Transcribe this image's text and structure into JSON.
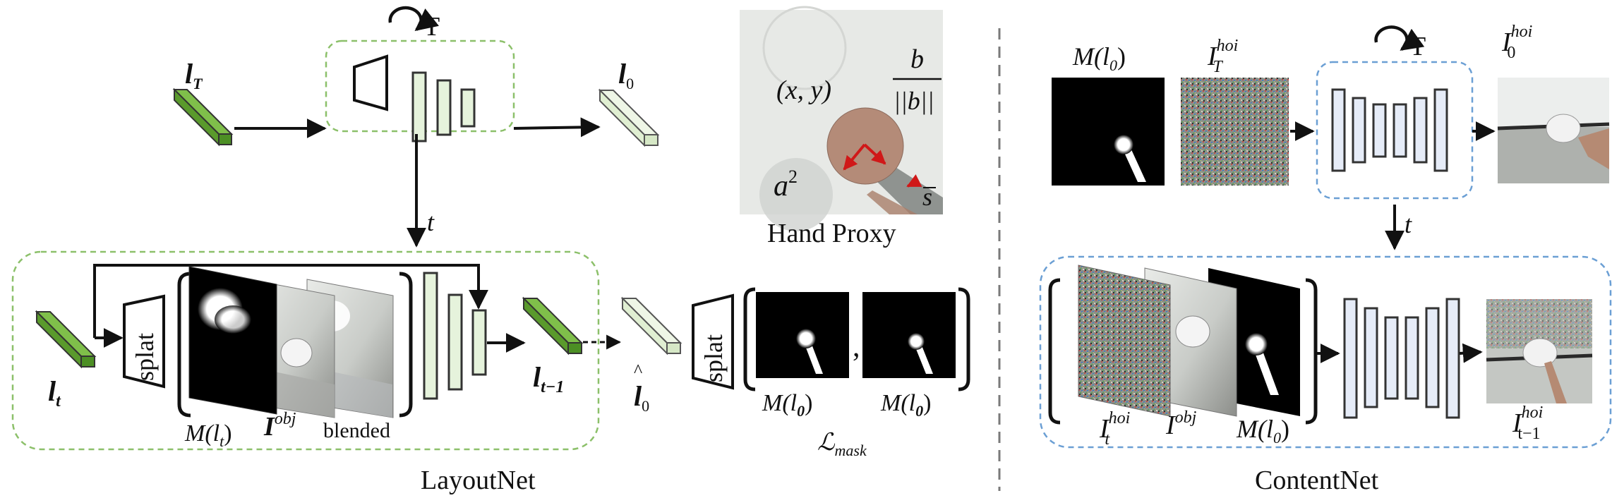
{
  "layoutnet": {
    "title": "LayoutNet",
    "loop_label": "T",
    "t_label": "t",
    "input_top": "l",
    "input_top_sub": "T",
    "output_top": "l",
    "output_top_sub": "0",
    "input_bottom": "l",
    "input_bottom_sub": "t",
    "output_bottom": "l",
    "output_bottom_sub": "t−1",
    "splat_label": "splat",
    "mask_label": "M(l",
    "mask_label_sub": "t",
    "mask_label_close": ")",
    "obj_label": "I",
    "obj_label_sup": "obj",
    "blended_label": "blended"
  },
  "mask_loss": {
    "pred_label": "l",
    "pred_label_sub": "0",
    "splat_label": "splat",
    "pred_mask": "M(l",
    "pred_mask_sub": "0",
    "pred_mask_close": ")",
    "gt_mask": "M(l",
    "gt_mask_sub": "0",
    "gt_mask_close": ")",
    "comma": ",",
    "loss_label": "ℒ",
    "loss_sub": "mask"
  },
  "hand_proxy": {
    "caption": "Hand Proxy",
    "xy": "(x, y)",
    "b_num": "b",
    "b_den": "||b||",
    "a2": "a",
    "a2_sup": "2",
    "s": "s"
  },
  "contentnet": {
    "title": "ContentNet",
    "loop_label": "T",
    "t_label": "t",
    "mask_top": "M(l",
    "mask_top_sub": "0",
    "mask_top_close": ")",
    "noise_top": "I",
    "noise_top_sup": "hoi",
    "noise_top_sub": "T",
    "out_top": "I",
    "out_top_sup": "hoi",
    "out_top_sub": "0",
    "in1": "I",
    "in1_sup": "hoi",
    "in1_sub": "t",
    "in2": "I",
    "in2_sup": "obj",
    "in3": "M(l",
    "in3_sub": "0",
    "in3_close": ")",
    "out_bottom": "I",
    "out_bottom_sup": "hoi",
    "out_bottom_sub": "t−1"
  },
  "colors": {
    "green_dark": "#5a9a2c",
    "green_light": "#e6f3dc",
    "blue_light": "#e6ecf8",
    "frame_green": "#8cc06a",
    "frame_blue": "#6b9fd4"
  }
}
